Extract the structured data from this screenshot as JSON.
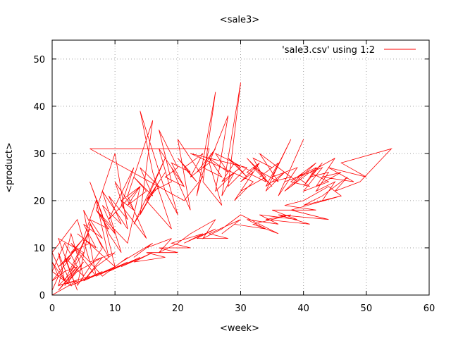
{
  "chart_data": {
    "type": "line",
    "title": "<sale3>",
    "xlabel": "<week>",
    "ylabel": "<product>",
    "xlim": [
      0,
      60
    ],
    "ylim": [
      0,
      54
    ],
    "x_ticks": [
      0,
      10,
      20,
      30,
      40,
      50,
      60
    ],
    "y_ticks": [
      0,
      10,
      20,
      30,
      40,
      50
    ],
    "grid": true,
    "legend_position": "top-right",
    "series": [
      {
        "name": "'sale3.csv' using 1:2",
        "color": "#ff0000",
        "points": [
          [
            0,
            1
          ],
          [
            1,
            4
          ],
          [
            0,
            7
          ],
          [
            2,
            3
          ],
          [
            1,
            9
          ],
          [
            3,
            2
          ],
          [
            0,
            5
          ],
          [
            2,
            11
          ],
          [
            4,
            6
          ],
          [
            1,
            2
          ],
          [
            3,
            13
          ],
          [
            5,
            4
          ],
          [
            2,
            8
          ],
          [
            4,
            1
          ],
          [
            1,
            12
          ],
          [
            5,
            9
          ],
          [
            3,
            5
          ],
          [
            6,
            14
          ],
          [
            2,
            3
          ],
          [
            0,
            9
          ],
          [
            4,
            16
          ],
          [
            6,
            7
          ],
          [
            3,
            11
          ],
          [
            7,
            4
          ],
          [
            5,
            18
          ],
          [
            8,
            10
          ],
          [
            4,
            2
          ],
          [
            6,
            15
          ],
          [
            9,
            8
          ],
          [
            7,
            20
          ],
          [
            5,
            12
          ],
          [
            10,
            6
          ],
          [
            8,
            17
          ],
          [
            6,
            24
          ],
          [
            9,
            13
          ],
          [
            11,
            9
          ],
          [
            8,
            22
          ],
          [
            12,
            14
          ],
          [
            10,
            30
          ],
          [
            7,
            18
          ],
          [
            12,
            11
          ],
          [
            14,
            23
          ],
          [
            9,
            16
          ],
          [
            13,
            27
          ],
          [
            11,
            19
          ],
          [
            15,
            12
          ],
          [
            12,
            21
          ],
          [
            16,
            37
          ],
          [
            14,
            17
          ],
          [
            17,
            24
          ],
          [
            13,
            15
          ],
          [
            18,
            29
          ],
          [
            15,
            20
          ],
          [
            19,
            14
          ],
          [
            16,
            26
          ],
          [
            14,
            39
          ],
          [
            18,
            22
          ],
          [
            20,
            17
          ],
          [
            17,
            31
          ],
          [
            21,
            23
          ],
          [
            19,
            27
          ],
          [
            22,
            18
          ],
          [
            20,
            33
          ],
          [
            24,
            25
          ],
          [
            21,
            20
          ],
          [
            6,
            31
          ],
          [
            25,
            31
          ],
          [
            23,
            21
          ],
          [
            26,
            43
          ],
          [
            24,
            24
          ],
          [
            27,
            19
          ],
          [
            25,
            28
          ],
          [
            28,
            38
          ],
          [
            26,
            22
          ],
          [
            29,
            26
          ],
          [
            27,
            21
          ],
          [
            30,
            45
          ],
          [
            28,
            23
          ],
          [
            31,
            27
          ],
          [
            22,
            30
          ],
          [
            32,
            24
          ],
          [
            29,
            20
          ],
          [
            33,
            28
          ],
          [
            30,
            22
          ],
          [
            34,
            25
          ],
          [
            31,
            29
          ],
          [
            35,
            23
          ],
          [
            32,
            27
          ],
          [
            36,
            24
          ],
          [
            33,
            30
          ],
          [
            37,
            26
          ],
          [
            34,
            22
          ],
          [
            38,
            33
          ],
          [
            35,
            25
          ],
          [
            39,
            27
          ],
          [
            36,
            21
          ],
          [
            40,
            33
          ],
          [
            37,
            24
          ],
          [
            41,
            26
          ],
          [
            38,
            23
          ],
          [
            42,
            28
          ],
          [
            39,
            25
          ],
          [
            43,
            27
          ],
          [
            40,
            22
          ],
          [
            44,
            24
          ],
          [
            41,
            26
          ],
          [
            45,
            29
          ],
          [
            42,
            23
          ],
          [
            46,
            26
          ],
          [
            43,
            25
          ],
          [
            48,
            24
          ],
          [
            44,
            27
          ],
          [
            50,
            25
          ],
          [
            46,
            28
          ],
          [
            54,
            31
          ],
          [
            49,
            24
          ],
          [
            45,
            22
          ],
          [
            47,
            25
          ],
          [
            43,
            21
          ],
          [
            40,
            19
          ],
          [
            46,
            21
          ],
          [
            38,
            18
          ],
          [
            44,
            16
          ],
          [
            36,
            17
          ],
          [
            41,
            15
          ],
          [
            34,
            16
          ],
          [
            38,
            17
          ],
          [
            32,
            15
          ],
          [
            36,
            13
          ],
          [
            30,
            17
          ],
          [
            27,
            14
          ],
          [
            24,
            12
          ],
          [
            26,
            16
          ],
          [
            22,
            13
          ],
          [
            20,
            11
          ],
          [
            17,
            9
          ],
          [
            19,
            12
          ],
          [
            15,
            10
          ],
          [
            13,
            8
          ],
          [
            16,
            11
          ],
          [
            11,
            7
          ],
          [
            9,
            5
          ],
          [
            12,
            8
          ],
          [
            8,
            4
          ],
          [
            6,
            7
          ],
          [
            10,
            9
          ],
          [
            7,
            6
          ],
          [
            5,
            3
          ],
          [
            8,
            8
          ],
          [
            4,
            5
          ],
          [
            2,
            2
          ],
          [
            5,
            7
          ],
          [
            3,
            4
          ],
          [
            1,
            1
          ],
          [
            4,
            6
          ],
          [
            2,
            5
          ],
          [
            0,
            3
          ],
          [
            3,
            8
          ],
          [
            1,
            6
          ],
          [
            4,
            10
          ],
          [
            2,
            7
          ],
          [
            5,
            12
          ],
          [
            3,
            9
          ],
          [
            6,
            11
          ],
          [
            4,
            13
          ],
          [
            7,
            10
          ],
          [
            5,
            15
          ],
          [
            8,
            12
          ],
          [
            6,
            16
          ],
          [
            9,
            14
          ],
          [
            7,
            18
          ],
          [
            10,
            13
          ],
          [
            8,
            19
          ],
          [
            11,
            15
          ],
          [
            9,
            21
          ],
          [
            12,
            16
          ],
          [
            10,
            24
          ],
          [
            13,
            18
          ],
          [
            11,
            20
          ],
          [
            14,
            23
          ],
          [
            12,
            19
          ],
          [
            15,
            22
          ],
          [
            13,
            25
          ],
          [
            16,
            21
          ],
          [
            14,
            27
          ],
          [
            17,
            23
          ],
          [
            15,
            20
          ],
          [
            18,
            26
          ],
          [
            16,
            22
          ],
          [
            19,
            24
          ],
          [
            17,
            35
          ],
          [
            20,
            27
          ],
          [
            18,
            25
          ],
          [
            21,
            23
          ],
          [
            19,
            28
          ],
          [
            22,
            26
          ],
          [
            20,
            29
          ],
          [
            23,
            24
          ],
          [
            21,
            27
          ],
          [
            24,
            30
          ],
          [
            22,
            25
          ],
          [
            25,
            28
          ],
          [
            23,
            26
          ],
          [
            26,
            31
          ],
          [
            24,
            27
          ],
          [
            27,
            25
          ],
          [
            25,
            29
          ],
          [
            28,
            26
          ],
          [
            26,
            30
          ],
          [
            29,
            28
          ],
          [
            27,
            24
          ],
          [
            30,
            27
          ],
          [
            28,
            29
          ],
          [
            31,
            25
          ],
          [
            29,
            28
          ],
          [
            32,
            26
          ],
          [
            30,
            24
          ],
          [
            33,
            28
          ],
          [
            31,
            26
          ],
          [
            34,
            24
          ],
          [
            32,
            29
          ],
          [
            35,
            27
          ],
          [
            33,
            25
          ],
          [
            36,
            28
          ],
          [
            34,
            23
          ],
          [
            37,
            26
          ],
          [
            35,
            24
          ],
          [
            38,
            25
          ],
          [
            36,
            27
          ],
          [
            39,
            24
          ],
          [
            37,
            22
          ],
          [
            40,
            26
          ],
          [
            38,
            24
          ],
          [
            41,
            23
          ],
          [
            39,
            25
          ],
          [
            42,
            27
          ],
          [
            40,
            23
          ],
          [
            43,
            28
          ],
          [
            41,
            25
          ],
          [
            44,
            26
          ],
          [
            42,
            22
          ],
          [
            45,
            24
          ],
          [
            43,
            20
          ],
          [
            46,
            21
          ],
          [
            44,
            23
          ],
          [
            40,
            20
          ],
          [
            37,
            19
          ],
          [
            42,
            18
          ],
          [
            35,
            18
          ],
          [
            39,
            16
          ],
          [
            33,
            17
          ],
          [
            36,
            15
          ],
          [
            31,
            16
          ],
          [
            34,
            14
          ],
          [
            29,
            15
          ],
          [
            27,
            13
          ],
          [
            30,
            16
          ],
          [
            25,
            13
          ],
          [
            28,
            12
          ],
          [
            23,
            12
          ],
          [
            26,
            14
          ],
          [
            21,
            11
          ],
          [
            24,
            13
          ],
          [
            19,
            11
          ],
          [
            22,
            10
          ],
          [
            17,
            10
          ],
          [
            20,
            9
          ],
          [
            15,
            9
          ],
          [
            18,
            8
          ],
          [
            13,
            7
          ],
          [
            16,
            9
          ],
          [
            11,
            6
          ],
          [
            14,
            8
          ],
          [
            9,
            5
          ],
          [
            12,
            7
          ],
          [
            7,
            4
          ],
          [
            10,
            6
          ],
          [
            5,
            3
          ],
          [
            8,
            5
          ],
          [
            3,
            2
          ],
          [
            6,
            4
          ],
          [
            1,
            2
          ],
          [
            4,
            3
          ],
          [
            0,
            0
          ]
        ]
      }
    ]
  }
}
